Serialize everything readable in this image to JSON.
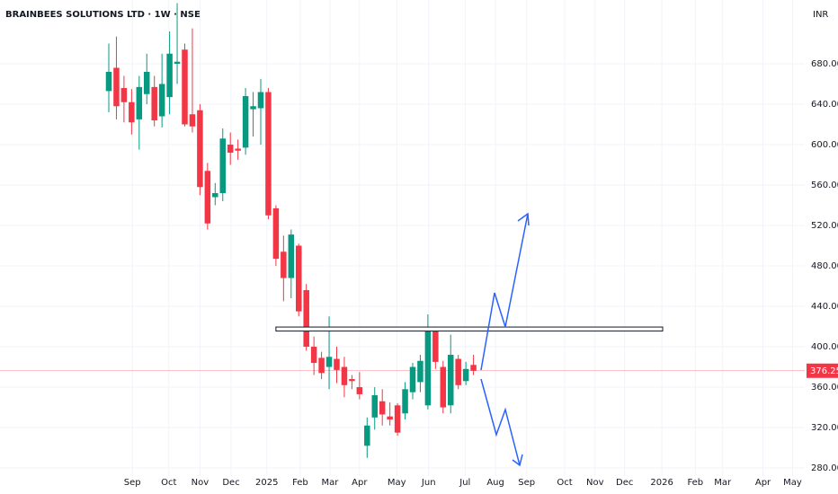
{
  "chart_data": {
    "type": "candlestick",
    "title": "BRAINBEES SOLUTIONS LTD · 1W · NSE",
    "currency": "INR",
    "up_color": "#089981",
    "down_color": "#f23645",
    "open": [
      653,
      676,
      656,
      642,
      625,
      650,
      657,
      628,
      647,
      680,
      694,
      630,
      634,
      574,
      548,
      552,
      600,
      596,
      597,
      635,
      636,
      652,
      537,
      494,
      468,
      500,
      456,
      400,
      389,
      380,
      388,
      380,
      368,
      360,
      302,
      330,
      346,
      331,
      342,
      334,
      355,
      365,
      342,
      417,
      380,
      342,
      388,
      366,
      382
    ],
    "high": [
      700,
      707,
      668,
      655,
      668,
      690,
      668,
      690,
      712,
      740,
      700,
      715,
      640,
      582,
      562,
      616,
      612,
      605,
      656,
      652,
      665,
      656,
      540,
      510,
      516,
      502,
      462,
      410,
      395,
      430,
      400,
      390,
      372,
      375,
      330,
      360,
      358,
      345,
      344,
      365,
      384,
      392,
      432,
      420,
      386,
      412,
      392,
      385,
      392
    ],
    "low": [
      632,
      625,
      622,
      610,
      595,
      640,
      618,
      617,
      630,
      660,
      618,
      612,
      550,
      516,
      540,
      544,
      580,
      585,
      590,
      608,
      600,
      526,
      480,
      445,
      448,
      430,
      396,
      372,
      368,
      358,
      364,
      350,
      358,
      348,
      290,
      318,
      322,
      322,
      312,
      328,
      348,
      355,
      338,
      378,
      334,
      334,
      358,
      362,
      372
    ],
    "close": [
      672,
      638,
      642,
      622,
      657,
      672,
      624,
      660,
      690,
      682,
      620,
      618,
      558,
      522,
      552,
      606,
      592,
      594,
      648,
      638,
      652,
      530,
      487,
      468,
      511,
      435,
      400,
      384,
      374,
      390,
      377,
      362,
      366,
      353,
      322,
      352,
      333,
      328,
      315,
      358,
      380,
      386,
      418,
      385,
      340,
      392,
      362,
      378,
      376.25
    ],
    "zone": {
      "x": [
        22,
        72.9
      ],
      "y": [
        415.5,
        419.5
      ]
    },
    "xlim": [
      -14.32,
      91.6
    ],
    "ylim": [
      267.6,
      743.1
    ],
    "yticks": [
      {
        "value": 280,
        "label": "280.00"
      },
      {
        "value": 320,
        "label": "320.00"
      },
      {
        "value": 360,
        "label": "360.00"
      },
      {
        "value": 400,
        "label": "400.00"
      },
      {
        "value": 440,
        "label": "440.00"
      },
      {
        "value": 480,
        "label": "480.00"
      },
      {
        "value": 520,
        "label": "520.00"
      },
      {
        "value": 560,
        "label": "560.00"
      },
      {
        "value": 600,
        "label": "600.00"
      },
      {
        "value": 640,
        "label": "640.00"
      },
      {
        "value": 680,
        "label": "680.00"
      }
    ],
    "xticks": [
      {
        "value": 3.1,
        "label": "Sep"
      },
      {
        "value": 7.9,
        "label": "Oct"
      },
      {
        "value": 12.0,
        "label": "Nov"
      },
      {
        "value": 16.1,
        "label": "Dec"
      },
      {
        "value": 20.8,
        "label": "2025"
      },
      {
        "value": 25.2,
        "label": "Feb"
      },
      {
        "value": 29.1,
        "label": "Mar"
      },
      {
        "value": 33.0,
        "label": "Apr"
      },
      {
        "value": 37.9,
        "label": "May"
      },
      {
        "value": 42.1,
        "label": "Jun"
      },
      {
        "value": 46.9,
        "label": "Jul"
      },
      {
        "value": 50.9,
        "label": "Aug"
      },
      {
        "value": 55.0,
        "label": "Sep"
      },
      {
        "value": 60.0,
        "label": "Oct"
      },
      {
        "value": 64.0,
        "label": "Nov"
      },
      {
        "value": 67.9,
        "label": "Dec"
      },
      {
        "value": 72.8,
        "label": "2026"
      },
      {
        "value": 77.2,
        "label": "Feb"
      },
      {
        "value": 80.8,
        "label": "Mar"
      },
      {
        "value": 86.1,
        "label": "Apr"
      },
      {
        "value": 90.0,
        "label": "May"
      }
    ],
    "grid": true
  }
}
